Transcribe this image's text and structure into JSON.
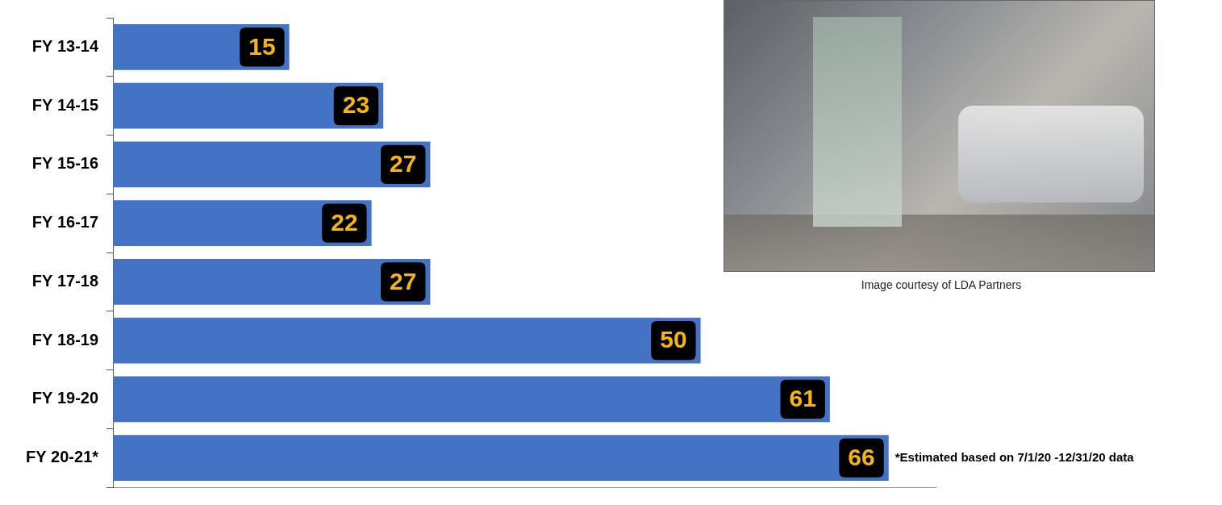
{
  "chart_data": {
    "type": "bar",
    "orientation": "horizontal",
    "categories": [
      "FY 13-14",
      "FY 14-15",
      "FY 15-16",
      "FY 16-17",
      "FY 17-18",
      "FY 18-19",
      "FY 19-20",
      "FY 20-21*"
    ],
    "values": [
      15,
      23,
      27,
      22,
      27,
      50,
      61,
      66
    ],
    "color": "#4472c4",
    "xlim": [
      0,
      70
    ],
    "grid": false,
    "data_labels": true,
    "tick_labels": "y",
    "annotations": [
      "*Estimated based on 7/1/20 -12/31/20 data",
      "Image courtesy of LDA Partners"
    ]
  }
}
